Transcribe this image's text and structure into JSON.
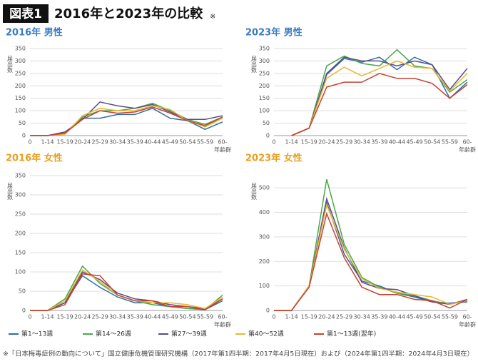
{
  "header": {
    "badge": "図表1",
    "title": "2016年と2023年の比較",
    "mark": "※"
  },
  "chart_data": [
    {
      "type": "line",
      "title": "2016年 男性",
      "title_color": "#3a7cc0",
      "y_label": "届出数",
      "x_label": "年齢群",
      "categories": [
        "0",
        "1-14",
        "15-19",
        "20-24",
        "25-29",
        "30-34",
        "35-39",
        "40-44",
        "45-49",
        "50-54",
        "55-59",
        "60-"
      ],
      "ylim": [
        0,
        350
      ],
      "yticks": [
        0,
        50,
        100,
        150,
        200,
        250,
        300,
        350
      ],
      "grid": true,
      "series": [
        {
          "name": "第1～13週",
          "color": "#2e6da4",
          "values": [
            0,
            0,
            10,
            70,
            70,
            85,
            85,
            110,
            70,
            60,
            25,
            55
          ]
        },
        {
          "name": "第14～26週",
          "color": "#4aa84a",
          "values": [
            0,
            0,
            10,
            75,
            100,
            100,
            110,
            130,
            100,
            65,
            45,
            75
          ]
        },
        {
          "name": "第27～39週",
          "color": "#5b4b8a",
          "values": [
            0,
            0,
            15,
            65,
            135,
            120,
            110,
            125,
            95,
            65,
            65,
            80
          ]
        },
        {
          "name": "第40～52週",
          "color": "#e8b830",
          "values": [
            0,
            0,
            5,
            80,
            110,
            100,
            100,
            120,
            105,
            60,
            35,
            70
          ]
        },
        {
          "name": "第1～13週(翌年)",
          "color": "#c9402e",
          "values": [
            0,
            0,
            10,
            65,
            100,
            90,
            95,
            115,
            90,
            60,
            40,
            75
          ]
        }
      ]
    },
    {
      "type": "line",
      "title": "2023年 男性",
      "title_color": "#3a7cc0",
      "y_label": "届出数",
      "x_label": "年齢群",
      "categories": [
        "0",
        "1-14",
        "15-19",
        "20-24",
        "25-29",
        "30-34",
        "35-39",
        "40-44",
        "45-49",
        "50-54",
        "55-59",
        "60-"
      ],
      "ylim": [
        0,
        350
      ],
      "yticks": [
        0,
        50,
        100,
        150,
        200,
        250,
        300,
        350
      ],
      "grid": true,
      "series": [
        {
          "color": "#2e6da4",
          "values": [
            null,
            0,
            30,
            245,
            310,
            295,
            315,
            265,
            315,
            285,
            150,
            215
          ]
        },
        {
          "color": "#4aa84a",
          "values": [
            null,
            0,
            30,
            280,
            320,
            290,
            280,
            345,
            280,
            270,
            175,
            225
          ]
        },
        {
          "color": "#5b4b8a",
          "values": [
            null,
            0,
            30,
            250,
            315,
            300,
            300,
            280,
            300,
            285,
            185,
            270
          ]
        },
        {
          "color": "#e8b830",
          "values": [
            null,
            0,
            30,
            230,
            275,
            240,
            270,
            300,
            275,
            270,
            180,
            250
          ]
        },
        {
          "color": "#c9402e",
          "values": [
            null,
            0,
            30,
            195,
            215,
            215,
            250,
            230,
            230,
            210,
            150,
            205
          ]
        }
      ]
    },
    {
      "type": "line",
      "title": "2016年 女性",
      "title_color": "#e8a020",
      "y_label": "届出数",
      "x_label": "年齢群",
      "categories": [
        "0",
        "1-14",
        "15-19",
        "20-24",
        "25-29",
        "30-34",
        "35-39",
        "40-44",
        "45-49",
        "50-54",
        "55-59",
        "60-"
      ],
      "ylim": [
        0,
        350
      ],
      "yticks": [
        0,
        50,
        100,
        150,
        200,
        250,
        300,
        350
      ],
      "grid": true,
      "series": [
        {
          "color": "#2e6da4",
          "values": [
            0,
            0,
            20,
            90,
            60,
            35,
            20,
            20,
            10,
            5,
            2,
            25
          ]
        },
        {
          "color": "#4aa84a",
          "values": [
            0,
            0,
            30,
            115,
            70,
            40,
            25,
            15,
            10,
            5,
            2,
            40
          ]
        },
        {
          "color": "#5b4b8a",
          "values": [
            0,
            0,
            20,
            100,
            80,
            45,
            30,
            25,
            15,
            10,
            5,
            30
          ]
        },
        {
          "color": "#e8b830",
          "values": [
            0,
            0,
            25,
            105,
            75,
            40,
            25,
            20,
            20,
            15,
            5,
            35
          ]
        },
        {
          "color": "#c9402e",
          "values": [
            0,
            0,
            15,
            95,
            90,
            40,
            25,
            25,
            10,
            10,
            2,
            30
          ]
        }
      ]
    },
    {
      "type": "line",
      "title": "2023年 女性",
      "title_color": "#e8a020",
      "y_label": "届出数",
      "x_label": "年齢群",
      "categories": [
        "0",
        "1-14",
        "15-19",
        "20-24",
        "25-29",
        "30-34",
        "35-39",
        "40-44",
        "45-49",
        "50-54",
        "55-59",
        "60-"
      ],
      "ylim": [
        0,
        550
      ],
      "yticks": [
        0,
        100,
        200,
        300,
        400,
        500
      ],
      "grid": true,
      "series": [
        {
          "color": "#2e6da4",
          "values": [
            0,
            0,
            100,
            440,
            230,
            120,
            100,
            70,
            55,
            35,
            30,
            35
          ]
        },
        {
          "color": "#4aa84a",
          "values": [
            0,
            0,
            100,
            535,
            270,
            135,
            95,
            70,
            60,
            40,
            25,
            40
          ]
        },
        {
          "color": "#5b4b8a",
          "values": [
            0,
            0,
            100,
            455,
            255,
            115,
            90,
            85,
            60,
            35,
            25,
            45
          ]
        },
        {
          "color": "#e8b830",
          "values": [
            0,
            0,
            100,
            430,
            250,
            130,
            90,
            75,
            65,
            55,
            25,
            40
          ]
        },
        {
          "color": "#c9402e",
          "values": [
            0,
            0,
            95,
            395,
            215,
            95,
            65,
            65,
            45,
            40,
            10,
            45
          ]
        }
      ]
    }
  ],
  "footnote": "※「日本梅毒症例の動向について」国立健康危機管理研究機構（2017年第1四半期：2017年4月5日現在）および（2024年第1四半期：2024年4月3日現在）"
}
